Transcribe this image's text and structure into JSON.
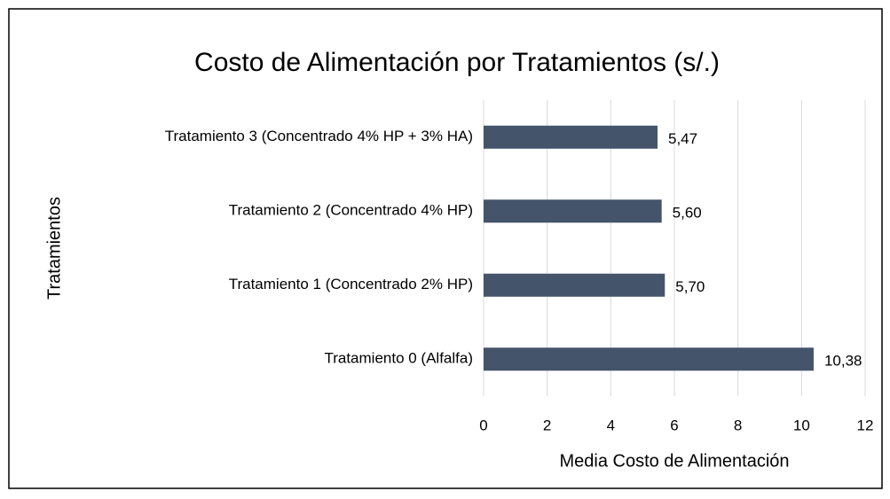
{
  "chart_data": {
    "type": "barh",
    "title": "Costo de Alimentación por Tratamientos (s/.)",
    "categories": [
      "Tratamiento 3 (Concentrado 4% HP + 3% HA)",
      "Tratamiento 2 (Concentrado 4% HP)",
      "Tratamiento 1 (Concentrado 2% HP)",
      "Tratamiento 0 (Alfalfa)"
    ],
    "values": [
      5.47,
      5.6,
      5.7,
      10.38
    ],
    "value_labels": [
      "5,47",
      "5,60",
      "5,70",
      "10,38"
    ],
    "color": "#44546a",
    "xlabel": "Media Costo de Alimentación",
    "ylabel": "Tratamientos",
    "xlim": [
      0,
      12
    ],
    "xticks": [
      0,
      2,
      4,
      6,
      8,
      10,
      12
    ],
    "grid": true
  }
}
